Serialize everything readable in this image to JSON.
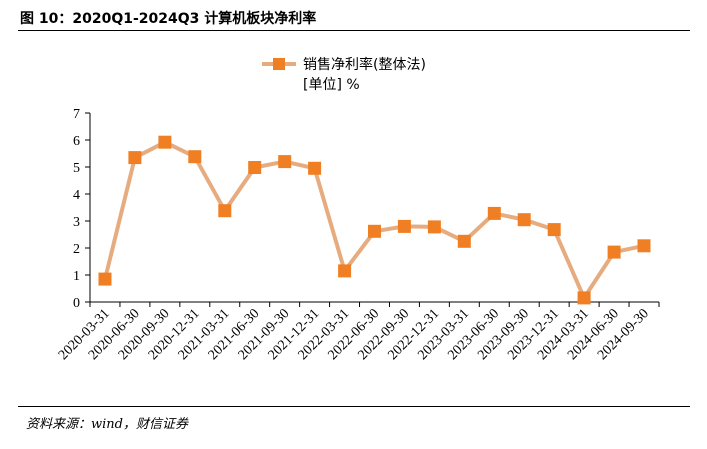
{
  "figure": {
    "title": "图 10：2020Q1-2024Q3 计算机板块净利率",
    "source": "资料来源：wind，财信证券"
  },
  "colors": {
    "line": "#e6ac80",
    "marker": "#f07f24",
    "axis": "#000000"
  },
  "chart_data": {
    "type": "line",
    "title": "",
    "xlabel": "",
    "ylabel": "",
    "ylim": [
      0,
      7
    ],
    "yticks": [
      0,
      1,
      2,
      3,
      4,
      5,
      6,
      7
    ],
    "grid": false,
    "legend_position": "top-center",
    "legend_name": "销售净利率(整体法)",
    "legend_unit": "[单位] %",
    "categories": [
      "2020-03-31",
      "2020-06-30",
      "2020-09-30",
      "2020-12-31",
      "2021-03-31",
      "2021-06-30",
      "2021-09-30",
      "2021-12-31",
      "2022-03-31",
      "2022-06-30",
      "2022-09-30",
      "2022-12-31",
      "2023-03-31",
      "2023-06-30",
      "2023-09-30",
      "2023-12-31",
      "2024-03-31",
      "2024-06-30",
      "2024-09-30"
    ],
    "series": [
      {
        "name": "销售净利率(整体法)",
        "values": [
          0.85,
          5.35,
          5.92,
          5.38,
          3.38,
          4.98,
          5.2,
          4.95,
          1.15,
          2.62,
          2.8,
          2.78,
          2.25,
          3.28,
          3.05,
          2.68,
          0.15,
          1.85,
          2.08
        ]
      }
    ]
  }
}
